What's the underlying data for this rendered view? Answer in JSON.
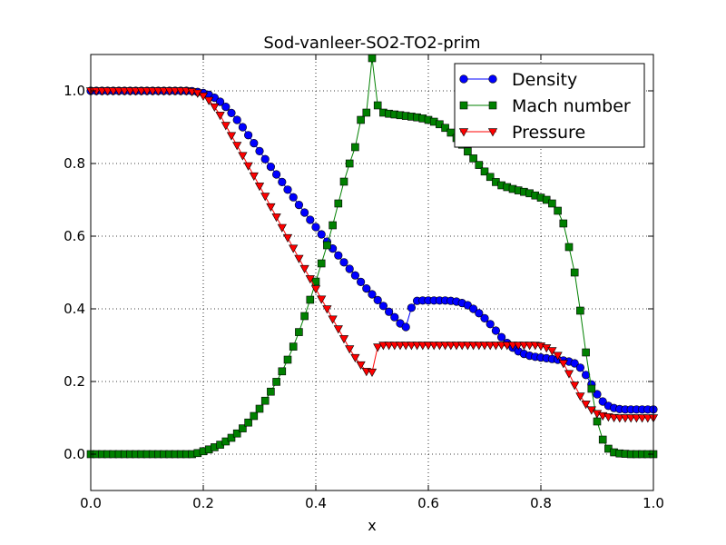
{
  "chart_data": {
    "type": "line",
    "title": "Sod-vanleer-SO2-TO2-prim",
    "xlabel": "x",
    "ylabel": "",
    "xlim": [
      0.0,
      1.0
    ],
    "ylim": [
      -0.1,
      1.1
    ],
    "xticks": [
      "0.0",
      "0.2",
      "0.4",
      "0.6",
      "0.8",
      "1.0"
    ],
    "yticks": [
      "0.0",
      "0.2",
      "0.4",
      "0.6",
      "0.8",
      "1.0"
    ],
    "grid": true,
    "legend_position": "top-right",
    "series": [
      {
        "name": "Density",
        "color": "#0000ff",
        "marker": "circle",
        "x": [
          0.0,
          0.01,
          0.02,
          0.03,
          0.04,
          0.05,
          0.06,
          0.07,
          0.08,
          0.09,
          0.1,
          0.11,
          0.12,
          0.13,
          0.14,
          0.15,
          0.16,
          0.17,
          0.18,
          0.19,
          0.2,
          0.21,
          0.22,
          0.23,
          0.24,
          0.25,
          0.26,
          0.27,
          0.28,
          0.29,
          0.3,
          0.31,
          0.32,
          0.33,
          0.34,
          0.35,
          0.36,
          0.37,
          0.38,
          0.39,
          0.4,
          0.41,
          0.42,
          0.43,
          0.44,
          0.45,
          0.46,
          0.47,
          0.48,
          0.49,
          0.5,
          0.51,
          0.52,
          0.53,
          0.54,
          0.55,
          0.56,
          0.57,
          0.58,
          0.59,
          0.6,
          0.61,
          0.62,
          0.63,
          0.64,
          0.65,
          0.66,
          0.67,
          0.68,
          0.69,
          0.7,
          0.71,
          0.72,
          0.73,
          0.74,
          0.75,
          0.76,
          0.77,
          0.78,
          0.79,
          0.8,
          0.81,
          0.82,
          0.83,
          0.84,
          0.85,
          0.86,
          0.87,
          0.88,
          0.89,
          0.9,
          0.91,
          0.92,
          0.93,
          0.94,
          0.95,
          0.96,
          0.97,
          0.98,
          0.99,
          1.0
        ],
        "y": [
          1.0,
          1.0,
          1.0,
          1.0,
          1.0,
          1.0,
          1.0,
          1.0,
          1.0,
          1.0,
          1.0,
          1.0,
          1.0,
          1.0,
          1.0,
          1.0,
          1.0,
          1.0,
          0.999,
          0.997,
          0.994,
          0.989,
          0.981,
          0.97,
          0.956,
          0.939,
          0.92,
          0.9,
          0.878,
          0.856,
          0.834,
          0.812,
          0.791,
          0.77,
          0.749,
          0.728,
          0.707,
          0.686,
          0.665,
          0.645,
          0.625,
          0.605,
          0.585,
          0.566,
          0.547,
          0.528,
          0.51,
          0.492,
          0.474,
          0.456,
          0.44,
          0.424,
          0.408,
          0.392,
          0.377,
          0.36,
          0.35,
          0.403,
          0.422,
          0.423,
          0.423,
          0.423,
          0.423,
          0.423,
          0.422,
          0.42,
          0.416,
          0.41,
          0.4,
          0.388,
          0.374,
          0.358,
          0.34,
          0.322,
          0.306,
          0.293,
          0.283,
          0.276,
          0.271,
          0.268,
          0.266,
          0.264,
          0.262,
          0.26,
          0.258,
          0.255,
          0.25,
          0.238,
          0.218,
          0.192,
          0.165,
          0.145,
          0.133,
          0.127,
          0.124,
          0.123,
          0.123,
          0.123,
          0.123,
          0.123,
          0.123
        ]
      },
      {
        "name": "Mach number",
        "color": "#008000",
        "marker": "square",
        "x": [
          0.0,
          0.01,
          0.02,
          0.03,
          0.04,
          0.05,
          0.06,
          0.07,
          0.08,
          0.09,
          0.1,
          0.11,
          0.12,
          0.13,
          0.14,
          0.15,
          0.16,
          0.17,
          0.18,
          0.19,
          0.2,
          0.21,
          0.22,
          0.23,
          0.24,
          0.25,
          0.26,
          0.27,
          0.28,
          0.29,
          0.3,
          0.31,
          0.32,
          0.33,
          0.34,
          0.35,
          0.36,
          0.37,
          0.38,
          0.39,
          0.4,
          0.41,
          0.42,
          0.43,
          0.44,
          0.45,
          0.46,
          0.47,
          0.48,
          0.49,
          0.5,
          0.51,
          0.52,
          0.53,
          0.54,
          0.55,
          0.56,
          0.57,
          0.58,
          0.59,
          0.6,
          0.61,
          0.62,
          0.63,
          0.64,
          0.65,
          0.66,
          0.67,
          0.68,
          0.69,
          0.7,
          0.71,
          0.72,
          0.73,
          0.74,
          0.75,
          0.76,
          0.77,
          0.78,
          0.79,
          0.8,
          0.81,
          0.82,
          0.83,
          0.84,
          0.85,
          0.86,
          0.87,
          0.88,
          0.89,
          0.9,
          0.91,
          0.92,
          0.93,
          0.94,
          0.95,
          0.96,
          0.97,
          0.98,
          0.99,
          1.0
        ],
        "y": [
          0.0,
          0.0,
          0.0,
          0.0,
          0.0,
          0.0,
          0.0,
          0.0,
          0.0,
          0.0,
          0.0,
          0.0,
          0.0,
          0.0,
          0.0,
          0.0,
          0.0,
          0.0,
          0.0,
          0.003,
          0.008,
          0.013,
          0.019,
          0.026,
          0.035,
          0.045,
          0.057,
          0.071,
          0.087,
          0.105,
          0.125,
          0.147,
          0.172,
          0.199,
          0.228,
          0.26,
          0.296,
          0.336,
          0.38,
          0.425,
          0.475,
          0.525,
          0.575,
          0.63,
          0.69,
          0.75,
          0.8,
          0.845,
          0.92,
          0.94,
          1.09,
          0.96,
          0.94,
          0.937,
          0.935,
          0.933,
          0.931,
          0.929,
          0.927,
          0.924,
          0.92,
          0.915,
          0.908,
          0.898,
          0.885,
          0.87,
          0.852,
          0.833,
          0.814,
          0.796,
          0.778,
          0.763,
          0.749,
          0.74,
          0.735,
          0.73,
          0.726,
          0.722,
          0.718,
          0.712,
          0.706,
          0.7,
          0.69,
          0.67,
          0.635,
          0.57,
          0.5,
          0.395,
          0.28,
          0.18,
          0.09,
          0.04,
          0.015,
          0.005,
          0.002,
          0.001,
          0.0,
          0.0,
          0.0,
          0.0,
          0.0
        ]
      },
      {
        "name": "Pressure",
        "color": "#ff0000",
        "marker": "triangle-down",
        "x": [
          0.0,
          0.01,
          0.02,
          0.03,
          0.04,
          0.05,
          0.06,
          0.07,
          0.08,
          0.09,
          0.1,
          0.11,
          0.12,
          0.13,
          0.14,
          0.15,
          0.16,
          0.17,
          0.18,
          0.19,
          0.2,
          0.21,
          0.22,
          0.23,
          0.24,
          0.25,
          0.26,
          0.27,
          0.28,
          0.29,
          0.3,
          0.31,
          0.32,
          0.33,
          0.34,
          0.35,
          0.36,
          0.37,
          0.38,
          0.39,
          0.4,
          0.41,
          0.42,
          0.43,
          0.44,
          0.45,
          0.46,
          0.47,
          0.48,
          0.49,
          0.5,
          0.51,
          0.52,
          0.53,
          0.54,
          0.55,
          0.56,
          0.57,
          0.58,
          0.59,
          0.6,
          0.61,
          0.62,
          0.63,
          0.64,
          0.65,
          0.66,
          0.67,
          0.68,
          0.69,
          0.7,
          0.71,
          0.72,
          0.73,
          0.74,
          0.75,
          0.76,
          0.77,
          0.78,
          0.79,
          0.8,
          0.81,
          0.82,
          0.83,
          0.84,
          0.85,
          0.86,
          0.87,
          0.88,
          0.89,
          0.9,
          0.91,
          0.92,
          0.93,
          0.94,
          0.95,
          0.96,
          0.97,
          0.98,
          0.99,
          1.0
        ],
        "y": [
          1.0,
          1.0,
          1.0,
          1.0,
          1.0,
          1.0,
          1.0,
          1.0,
          1.0,
          1.0,
          1.0,
          1.0,
          1.0,
          1.0,
          1.0,
          1.0,
          1.0,
          1.0,
          0.998,
          0.994,
          0.986,
          0.974,
          0.956,
          0.933,
          0.905,
          0.877,
          0.85,
          0.822,
          0.794,
          0.766,
          0.738,
          0.71,
          0.681,
          0.653,
          0.624,
          0.596,
          0.567,
          0.539,
          0.511,
          0.483,
          0.455,
          0.427,
          0.4,
          0.372,
          0.345,
          0.318,
          0.29,
          0.266,
          0.246,
          0.228,
          0.226,
          0.295,
          0.3,
          0.3,
          0.3,
          0.3,
          0.3,
          0.3,
          0.3,
          0.3,
          0.3,
          0.3,
          0.3,
          0.3,
          0.3,
          0.3,
          0.3,
          0.3,
          0.3,
          0.3,
          0.3,
          0.3,
          0.3,
          0.3,
          0.3,
          0.3,
          0.3,
          0.3,
          0.3,
          0.3,
          0.298,
          0.293,
          0.285,
          0.272,
          0.25,
          0.222,
          0.19,
          0.16,
          0.138,
          0.122,
          0.112,
          0.106,
          0.103,
          0.101,
          0.1,
          0.1,
          0.1,
          0.1,
          0.1,
          0.1,
          0.1
        ]
      }
    ]
  }
}
